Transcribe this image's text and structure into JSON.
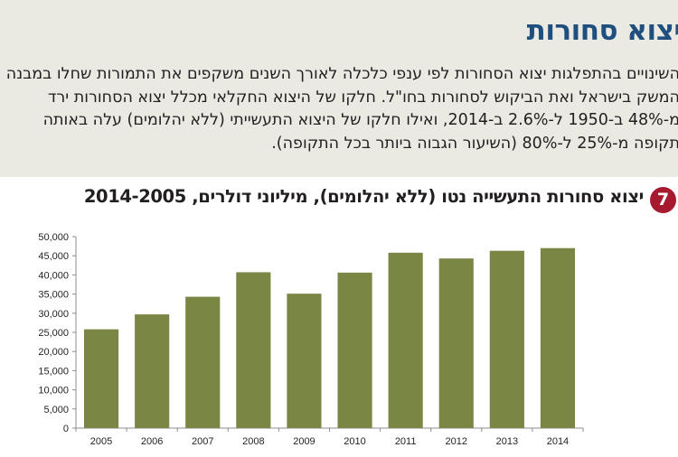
{
  "section": {
    "heading": "יצוא סחורות",
    "paragraph_lines": [
      "השינויים בהתפלגות יצוא הסחורות לפי ענפי כלכלה לאורך השנים משקפים את התמורות שחלו במבנה",
      "המשק בישראל ואת הביקוש לסחורות בחו\"ל. חלקו של היצוא החקלאי מכלל יצוא הסחורות ירד",
      "מ-48% ב-1950 ל-2.6% ב-2014, ואילו חלקו של היצוא התעשייתי (ללא יהלומים) עלה באותה",
      "תקופה מ-25% ל-80% (השיעור הגבוה ביותר בכל התקופה)."
    ]
  },
  "chart_number": "7",
  "colors": {
    "bar": "#7a8644",
    "axis": "#8c8c8c",
    "heading": "#1f4f7f",
    "badge": "#a6192e",
    "band": "#eaeae3"
  },
  "chart_data": {
    "type": "bar",
    "title": "יצוא סחורות התעשייה נטו (ללא יהלומים), מיליוני דולרים, 2014-2005",
    "categories": [
      "2005",
      "2006",
      "2007",
      "2008",
      "2009",
      "2010",
      "2011",
      "2012",
      "2013",
      "2014"
    ],
    "values": [
      25800,
      29700,
      34300,
      40700,
      35100,
      40600,
      45800,
      44300,
      46300,
      47000
    ],
    "ylim": [
      0,
      50000
    ],
    "yticks": [
      0,
      5000,
      10000,
      15000,
      20000,
      25000,
      30000,
      35000,
      40000,
      45000,
      50000
    ],
    "ytick_labels": [
      "0",
      "5,000",
      "10,000",
      "15,000",
      "20,000",
      "25,000",
      "30,000",
      "35,000",
      "40,000",
      "45,000",
      "50,000"
    ],
    "grid": false,
    "legend": "none"
  }
}
